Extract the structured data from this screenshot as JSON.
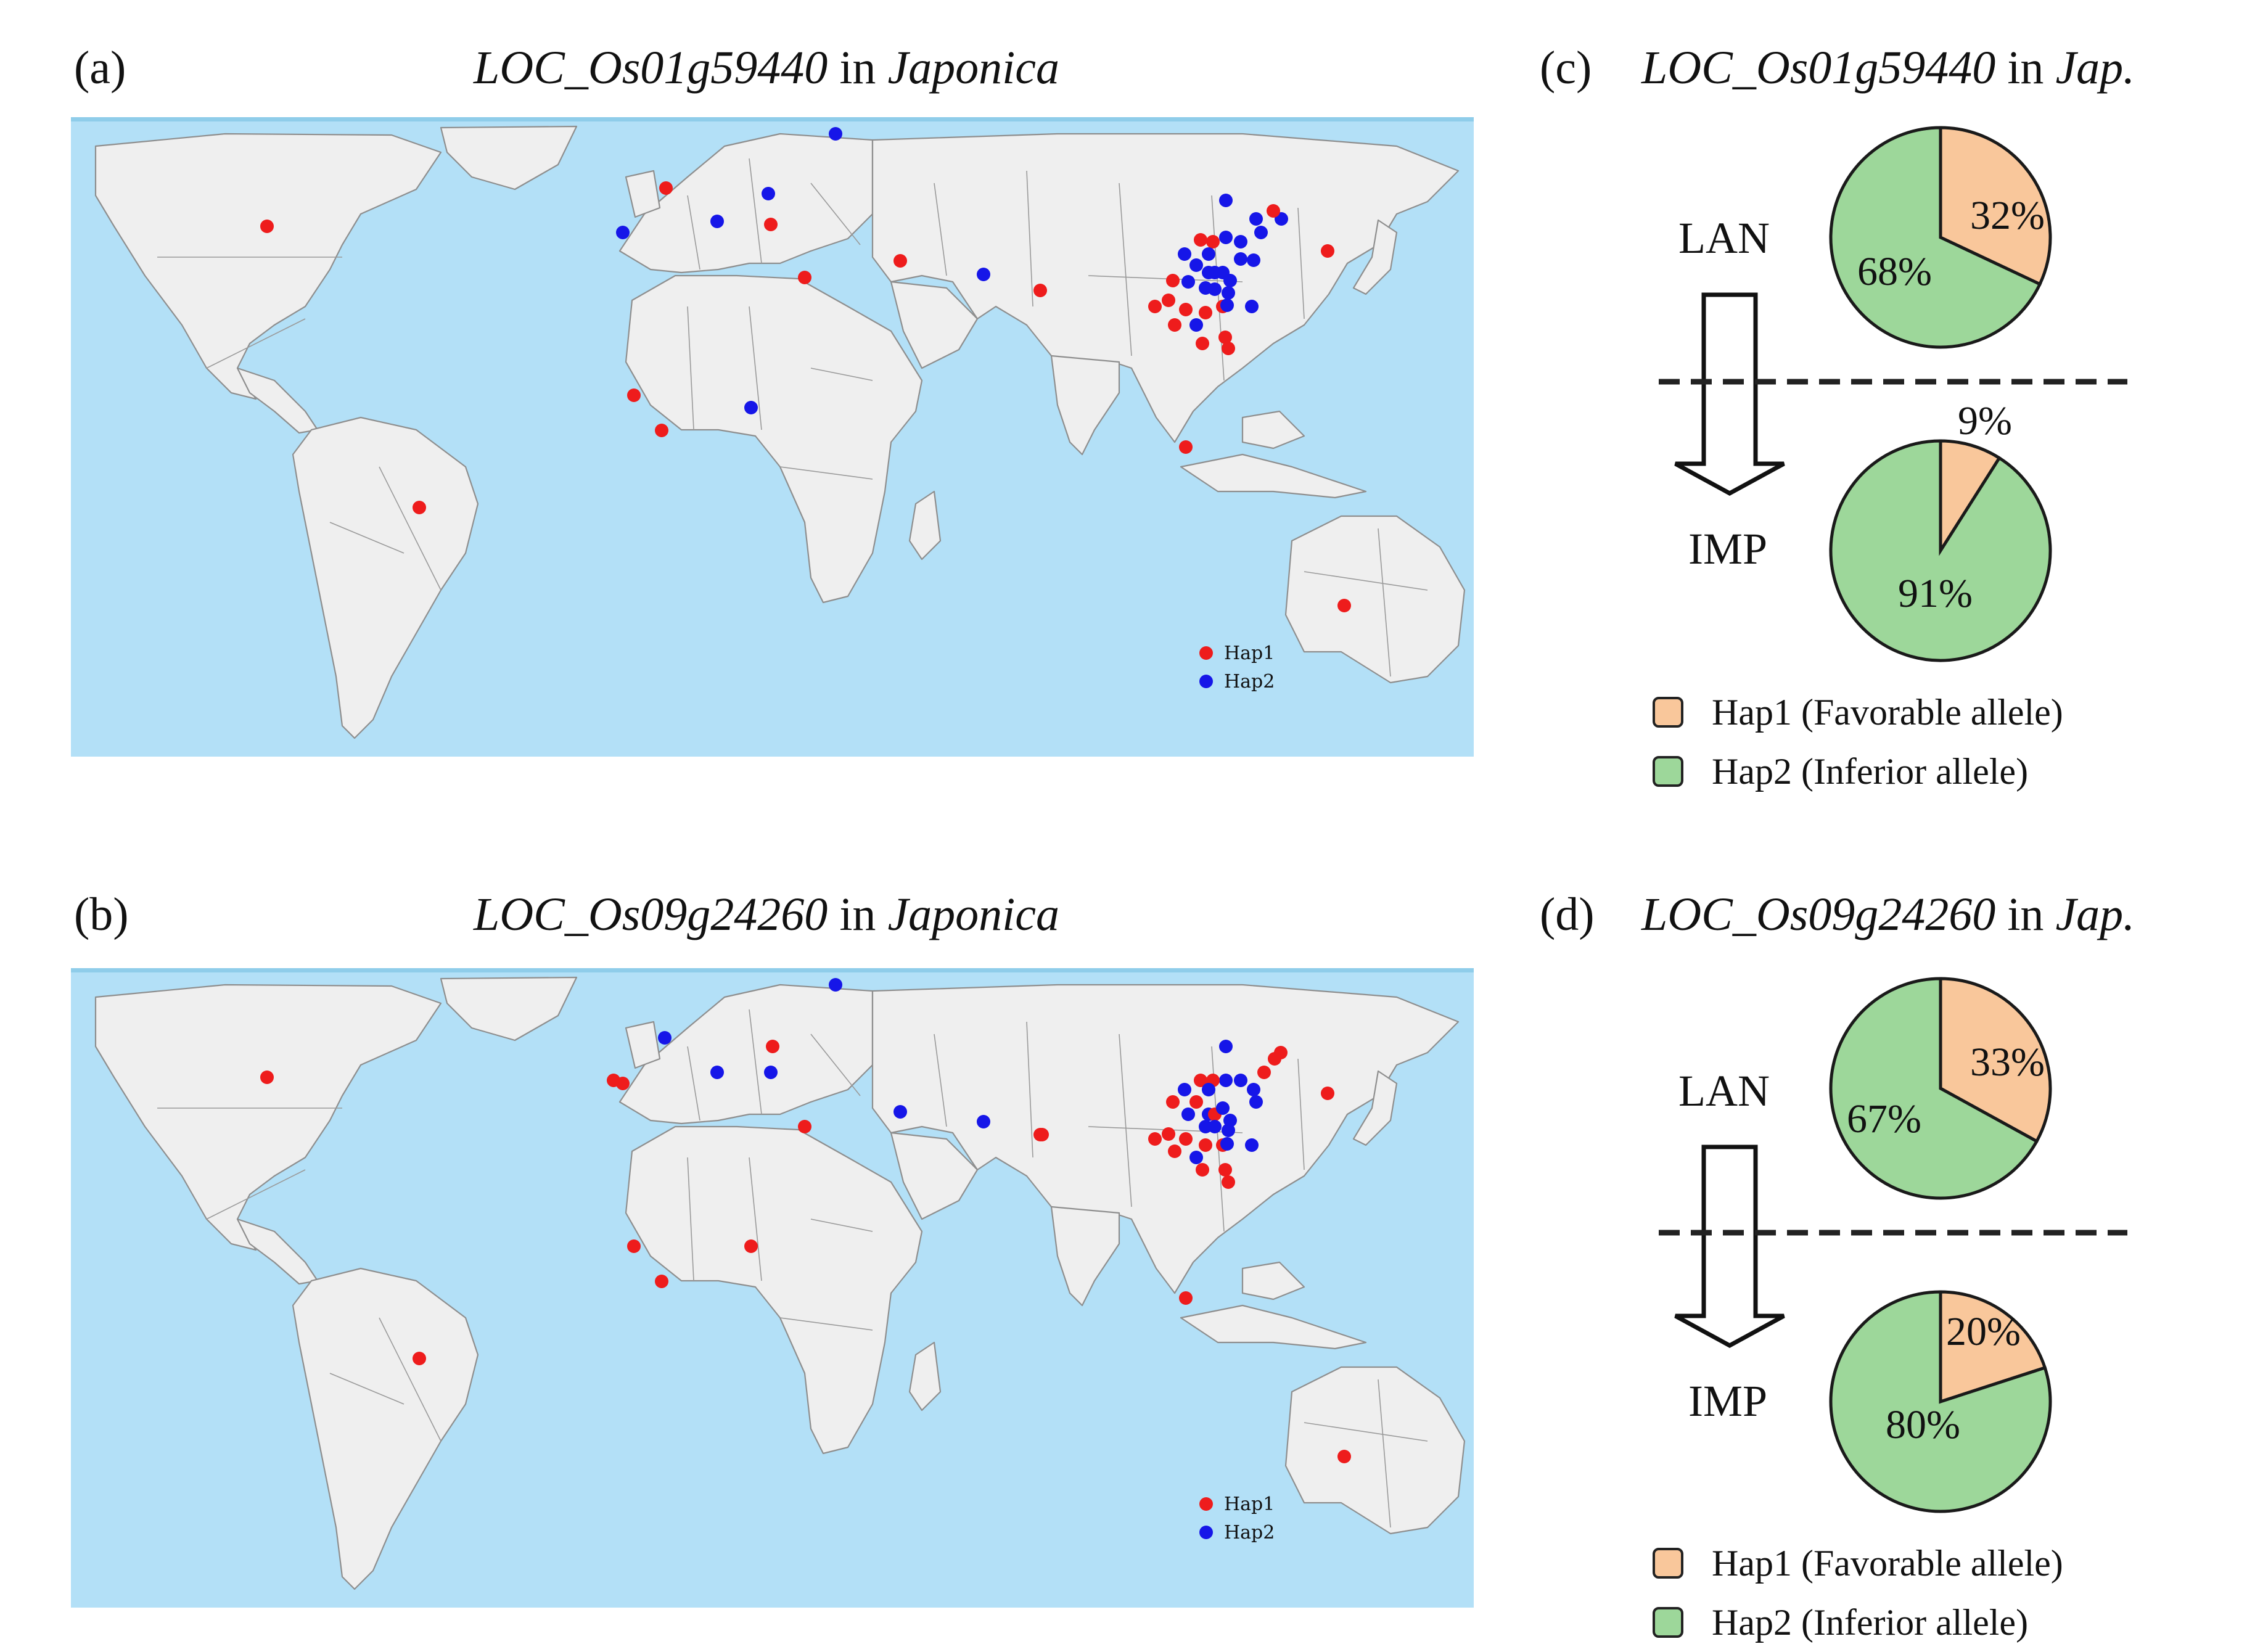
{
  "panels": {
    "a": {
      "label": "(a)",
      "gene": "LOC_Os01g59440",
      "in_word": " in ",
      "group": "Japonica"
    },
    "b": {
      "label": "(b)",
      "gene": "LOC_Os09g24260",
      "in_word": " in ",
      "group": "Japonica"
    },
    "c": {
      "label": "(c)",
      "gene": "LOC_Os01g59440",
      "in_word": " in ",
      "group": "Jap."
    },
    "d": {
      "label": "(d)",
      "gene": "LOC_Os09g24260",
      "in_word": " in ",
      "group": "Jap."
    }
  },
  "map_legend": {
    "hap1": "Hap1",
    "hap2": "Hap2"
  },
  "colors": {
    "hap1_dot": "#ee1c1c",
    "hap2_dot": "#1616e8",
    "ocean": "#b3e0f7",
    "land": "#efefef",
    "favorable": "#f9c79b",
    "inferior": "#9dd79a"
  },
  "arrow_labels": {
    "top": "LAN",
    "bottom": "IMP"
  },
  "pie_legend": {
    "hap1": "Hap1 (Favorable allele)",
    "hap2": "Hap2 (Inferior allele)"
  },
  "chart_data": [
    {
      "type": "pie",
      "panel": "c",
      "stage": "LAN",
      "labels": [
        "Hap1",
        "Hap2"
      ],
      "values": [
        32,
        68
      ],
      "value_labels": [
        "32%",
        "68%"
      ]
    },
    {
      "type": "pie",
      "panel": "c",
      "stage": "IMP",
      "labels": [
        "Hap1",
        "Hap2"
      ],
      "values": [
        9,
        91
      ],
      "value_labels": [
        "9%",
        "91%"
      ]
    },
    {
      "type": "pie",
      "panel": "d",
      "stage": "LAN",
      "labels": [
        "Hap1",
        "Hap2"
      ],
      "values": [
        33,
        67
      ],
      "value_labels": [
        "33%",
        "67%"
      ]
    },
    {
      "type": "pie",
      "panel": "d",
      "stage": "IMP",
      "labels": [
        "Hap1",
        "Hap2"
      ],
      "values": [
        20,
        80
      ],
      "value_labels": [
        "20%",
        "80%"
      ]
    }
  ]
}
